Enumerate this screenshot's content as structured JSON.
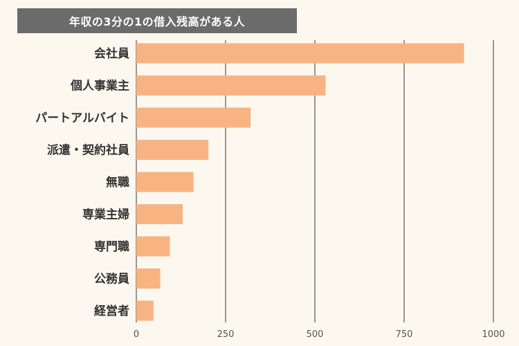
{
  "chart_data": {
    "type": "bar",
    "orientation": "horizontal",
    "title": "年収の3分の1の借入残高がある人",
    "categories": [
      "会社員",
      "個人事業主",
      "パートアルバイト",
      "派遣・契約社員",
      "無職",
      "専業主婦",
      "専門職",
      "公務員",
      "経営者"
    ],
    "values": [
      918,
      530,
      320,
      202,
      160,
      130,
      94,
      67,
      48
    ],
    "xlim": [
      0,
      1000
    ],
    "xticks": [
      0,
      250,
      500,
      750,
      1000
    ],
    "tick_labels": [
      "0",
      "250",
      "500",
      "750",
      "1000"
    ],
    "grid": true,
    "bar_color": "#f7b482",
    "grid_color": "#333333"
  }
}
